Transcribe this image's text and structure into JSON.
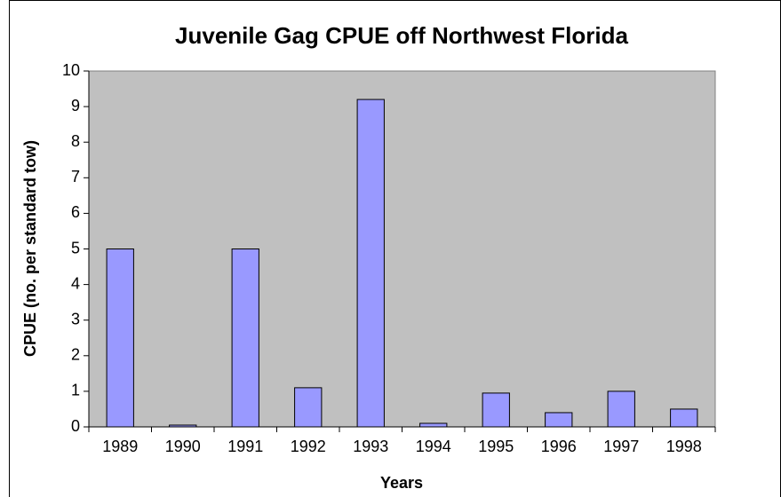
{
  "chart_data": {
    "type": "bar",
    "title": "Juvenile Gag CPUE off Northwest Florida",
    "x_label": "Years",
    "y_label": "CPUE (no. per standard tow)",
    "categories": [
      "1989",
      "1990",
      "1991",
      "1992",
      "1993",
      "1994",
      "1995",
      "1996",
      "1997",
      "1998"
    ],
    "values": [
      5,
      0.05,
      5,
      1.1,
      9.2,
      0.1,
      0.95,
      0.4,
      1,
      0.5
    ],
    "color": "#9999ff",
    "ylim": [
      0,
      10
    ],
    "yticks": [
      0,
      1,
      2,
      3,
      4,
      5,
      6,
      7,
      8,
      9,
      10
    ],
    "grid": false
  }
}
